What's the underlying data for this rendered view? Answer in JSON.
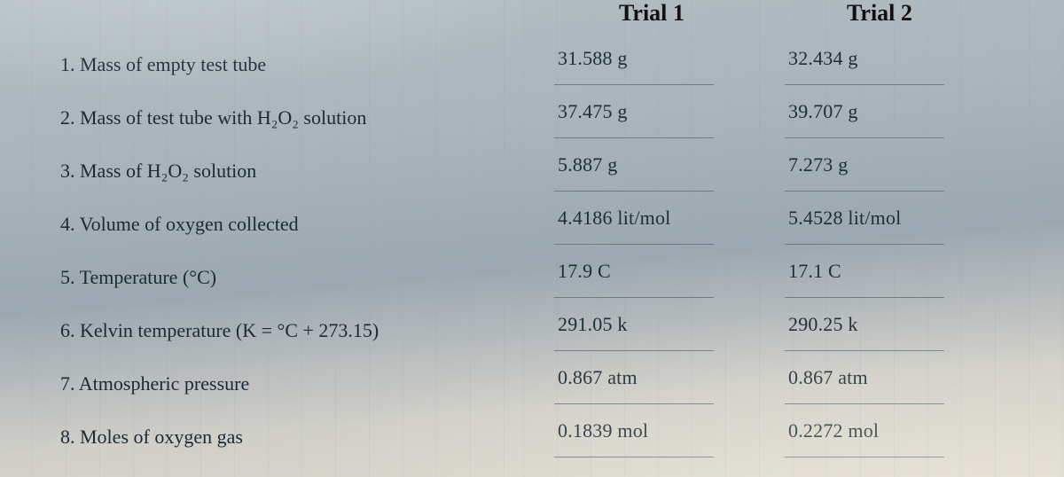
{
  "background_color": "#a9b4bb",
  "text_color": "#1b2a33",
  "rule_color": "#6f7c85",
  "title_fontsize": 26,
  "body_fontsize": 22,
  "headers": {
    "trial1": "Trial 1",
    "trial2": "Trial 2"
  },
  "labels": {
    "l1": "1.  Mass of empty test tube",
    "l2": "2.  Mass of test tube with H₂O₂ solution",
    "l3": "3.  Mass of H₂O₂ solution",
    "l4": "4.  Volume of oxygen collected",
    "l5": "5.  Temperature (°C)",
    "l6": "6.  Kelvin temperature (K = °C + 273.15)",
    "l7": "7.  Atmospheric pressure",
    "l8": "8.  Moles of oxygen gas"
  },
  "trial1": {
    "r1": "31.588 g",
    "r2": "37.475 g",
    "r3": "5.887 g",
    "r4": "4.4186 lit/mol",
    "r5": "17.9 C",
    "r6": "291.05 k",
    "r7": "0.867 atm",
    "r8": "0.1839 mol"
  },
  "trial2": {
    "r1": "32.434 g",
    "r2": "39.707 g",
    "r3": "7.273 g",
    "r4": "5.4528 lit/mol",
    "r5": "17.1 C",
    "r6": "290.25 k",
    "r7": "0.867 atm",
    "r8": "0.2272 mol"
  }
}
